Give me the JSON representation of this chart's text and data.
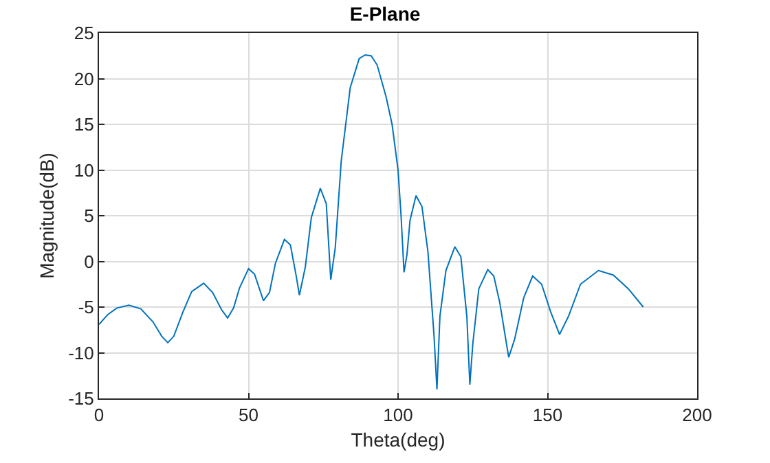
{
  "chart_data": {
    "type": "line",
    "title": "E-Plane",
    "xlabel": "Theta(deg)",
    "ylabel": "Magnitude(dB)",
    "xlim": [
      0,
      200
    ],
    "xticks": [
      0,
      50,
      100,
      150,
      200
    ],
    "ylim": [
      -15,
      25
    ],
    "yticks": [
      -15,
      -10,
      -5,
      0,
      5,
      10,
      15,
      20,
      25
    ],
    "grid": true,
    "marker": "none",
    "line_style": "solid",
    "series": [
      {
        "color": "#0072bd",
        "x": [
          0,
          3,
          6,
          10,
          14,
          18,
          21,
          23,
          25,
          28,
          31,
          35,
          38,
          41,
          43,
          45,
          47,
          50,
          52,
          55,
          57,
          59,
          62,
          64,
          66,
          67,
          69,
          71,
          74,
          76,
          77.5,
          79,
          81,
          84,
          87,
          89,
          91,
          93,
          96,
          98,
          100,
          101,
          102,
          103,
          104,
          106,
          108,
          110,
          112,
          113,
          114,
          116,
          119,
          121,
          123,
          124,
          125,
          127,
          130,
          132,
          134,
          137,
          139,
          142,
          145,
          148,
          151,
          154,
          157,
          161,
          167,
          172,
          177,
          182
        ],
        "values": [
          -6.9,
          -5.8,
          -5.1,
          -4.8,
          -5.2,
          -6.6,
          -8.2,
          -8.9,
          -8.2,
          -5.6,
          -3.3,
          -2.4,
          -3.4,
          -5.3,
          -6.2,
          -5.1,
          -2.9,
          -0.8,
          -1.4,
          -4.3,
          -3.4,
          -0.2,
          2.4,
          1.8,
          -1.7,
          -3.7,
          -0.6,
          4.8,
          8.0,
          6.3,
          -2,
          1.5,
          11,
          19,
          22.2,
          22.6,
          22.5,
          21.5,
          18,
          15,
          10,
          5,
          -1.2,
          0.8,
          4.5,
          7.2,
          6,
          1,
          -8,
          -14,
          -6,
          -1,
          1.6,
          0.5,
          -6,
          -13.5,
          -9,
          -3,
          -0.9,
          -1.6,
          -4.5,
          -10.5,
          -8.5,
          -4,
          -1.6,
          -2.5,
          -5.5,
          -8,
          -6,
          -2.5,
          -1,
          -1.5,
          -3,
          -5
        ]
      }
    ]
  }
}
